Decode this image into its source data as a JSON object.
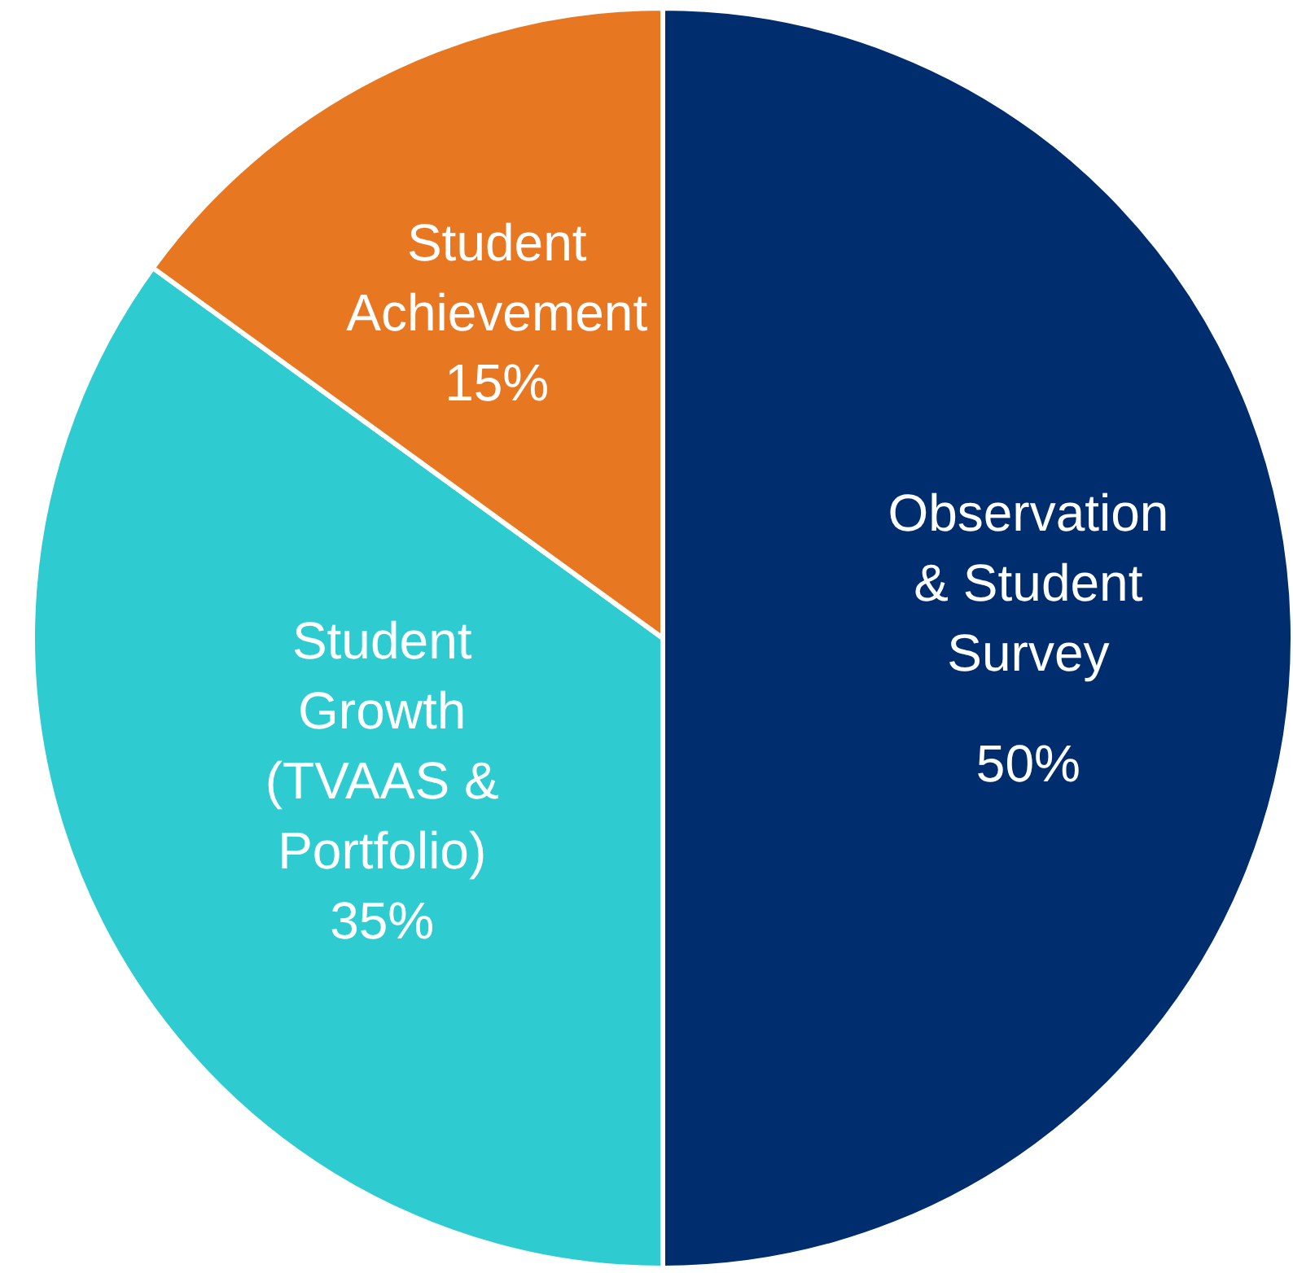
{
  "chart_data": {
    "type": "pie",
    "categories": [
      "Observation\n& Student\nSurvey",
      "Student\nGrowth\n(TVAAS &\nPortfolio)",
      "Student\nAchievement"
    ],
    "values": [
      50,
      35,
      15
    ],
    "colors": [
      "#002d6e",
      "#2ecbd0",
      "#e87722"
    ],
    "value_labels": [
      "50%",
      "35%",
      "15%"
    ]
  }
}
